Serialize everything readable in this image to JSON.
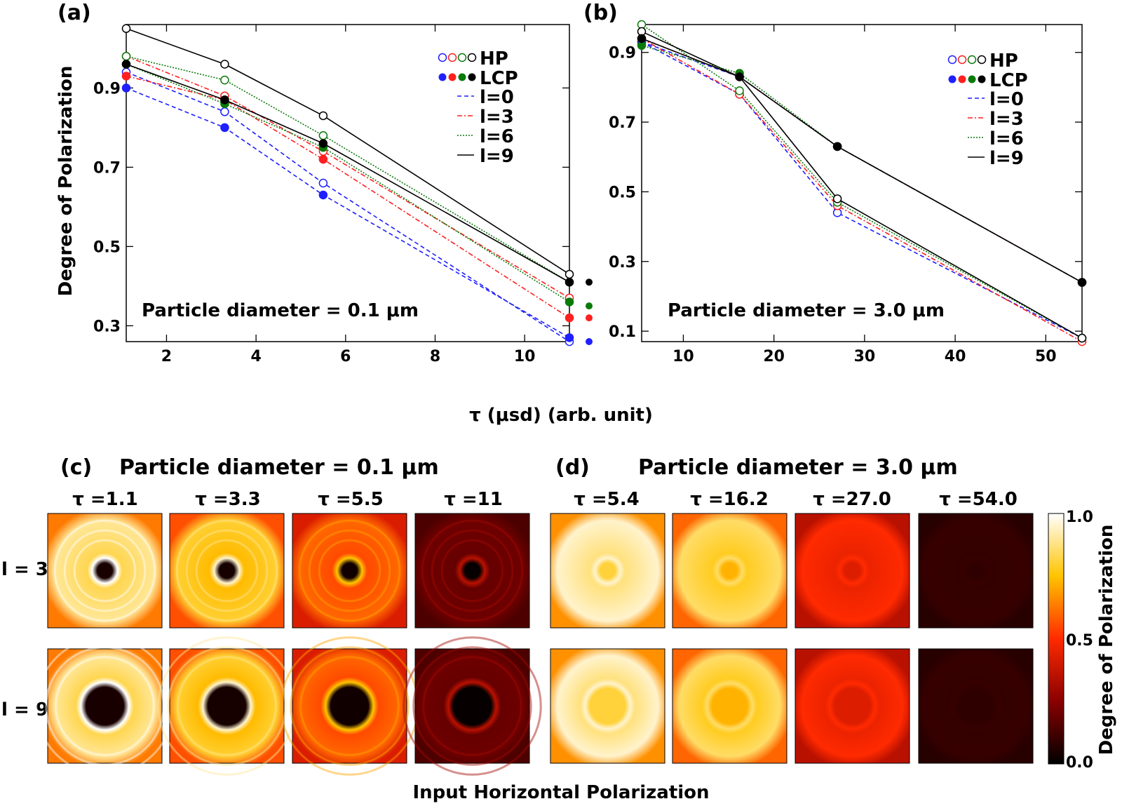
{
  "figure": {
    "shared_xlabel": "τ (μsd) (arb. unit)",
    "shared_ylabel": "Degree of Polarization",
    "bottom_caption": "Input Horizontal Polarization"
  },
  "legend": {
    "hp_label": "HP",
    "lcp_label": "LCP",
    "line_labels": [
      "l=0",
      "l=3",
      "l=6",
      "l=9"
    ]
  },
  "colors": {
    "l0": "#1f1fff",
    "l3": "#ff1f1f",
    "l6": "#0a7a0a",
    "l9": "#000000"
  },
  "chart_data": [
    {
      "panel": "(a)",
      "type": "line",
      "annotation": "Particle diameter = 0.1 μm",
      "x": [
        1.1,
        3.3,
        5.5,
        11
      ],
      "xlim": [
        1.1,
        11
      ],
      "ylim": [
        0.26,
        1.06
      ],
      "xticks": [
        2,
        4,
        6,
        8,
        10
      ],
      "yticks": [
        0.3,
        0.5,
        0.7,
        0.9
      ],
      "legend_position": "top-right",
      "series": [
        {
          "name": "HP",
          "l": "l=0",
          "color": "#1f1fff",
          "values": [
            0.94,
            0.84,
            0.66,
            0.26
          ]
        },
        {
          "name": "HP",
          "l": "l=3",
          "color": "#ff1f1f",
          "values": [
            0.98,
            0.88,
            0.74,
            0.37
          ]
        },
        {
          "name": "HP",
          "l": "l=6",
          "color": "#0a7a0a",
          "values": [
            0.98,
            0.92,
            0.78,
            0.41
          ]
        },
        {
          "name": "HP",
          "l": "l=9",
          "color": "#000000",
          "values": [
            1.05,
            0.96,
            0.83,
            0.43
          ]
        },
        {
          "name": "LCP",
          "l": "l=0",
          "color": "#1f1fff",
          "values": [
            0.9,
            0.8,
            0.63,
            0.27
          ]
        },
        {
          "name": "LCP",
          "l": "l=3",
          "color": "#ff1f1f",
          "values": [
            0.93,
            0.87,
            0.72,
            0.32
          ]
        },
        {
          "name": "LCP",
          "l": "l=6",
          "color": "#0a7a0a",
          "values": [
            0.96,
            0.86,
            0.75,
            0.36
          ]
        },
        {
          "name": "LCP",
          "l": "l=9",
          "color": "#000000",
          "values": [
            0.96,
            0.87,
            0.76,
            0.41
          ]
        }
      ],
      "outside_points": [
        {
          "color": "#000000",
          "value": 0.41
        },
        {
          "color": "#0a7a0a",
          "value": 0.35
        },
        {
          "color": "#ff1f1f",
          "value": 0.32
        },
        {
          "color": "#1f1fff",
          "value": 0.26
        }
      ]
    },
    {
      "panel": "(b)",
      "type": "line",
      "annotation": "Particle diameter = 3.0 μm",
      "x": [
        5.4,
        16.2,
        27.0,
        54.0
      ],
      "xlim": [
        5.4,
        54
      ],
      "ylim": [
        0.07,
        0.98
      ],
      "xticks": [
        10,
        20,
        30,
        40,
        50
      ],
      "yticks": [
        0.1,
        0.3,
        0.5,
        0.7,
        0.9
      ],
      "legend_position": "top-right",
      "series": [
        {
          "name": "HP",
          "l": "l=0",
          "color": "#1f1fff",
          "values": [
            0.93,
            0.78,
            0.44,
            0.08
          ]
        },
        {
          "name": "HP",
          "l": "l=3",
          "color": "#ff1f1f",
          "values": [
            0.94,
            0.78,
            0.46,
            0.07
          ]
        },
        {
          "name": "HP",
          "l": "l=6",
          "color": "#0a7a0a",
          "values": [
            0.98,
            0.79,
            0.47,
            0.08
          ]
        },
        {
          "name": "HP",
          "l": "l=9",
          "color": "#000000",
          "values": [
            0.96,
            0.83,
            0.48,
            0.08
          ]
        },
        {
          "name": "LCP",
          "l": "l=0",
          "color": "#1f1fff",
          "values": [
            0.93,
            0.83,
            0.63,
            0.24
          ]
        },
        {
          "name": "LCP",
          "l": "l=3",
          "color": "#ff1f1f",
          "values": [
            0.94,
            0.83,
            0.63,
            0.24
          ]
        },
        {
          "name": "LCP",
          "l": "l=6",
          "color": "#0a7a0a",
          "values": [
            0.92,
            0.84,
            0.63,
            0.24
          ]
        },
        {
          "name": "LCP",
          "l": "l=9",
          "color": "#000000",
          "values": [
            0.94,
            0.83,
            0.63,
            0.24
          ]
        }
      ],
      "outside_points": []
    }
  ],
  "heatmaps": {
    "panel_c": {
      "label": "(c)",
      "title": "Particle diameter = 0.1 μm",
      "columns": [
        "τ =1.1",
        "τ =3.3",
        "τ =5.5",
        "τ =11"
      ],
      "dop_level": [
        0.9,
        0.8,
        0.6,
        0.2
      ],
      "pattern": "rings"
    },
    "panel_d": {
      "label": "(d)",
      "title": "Particle diameter = 3.0 μm",
      "columns": [
        "τ =5.4",
        "τ =16.2",
        "τ =27.0",
        "τ =54.0"
      ],
      "dop_level": [
        0.95,
        0.85,
        0.5,
        0.1
      ],
      "pattern": "smooth"
    },
    "row_labels": [
      "l = 3",
      "l = 9"
    ],
    "colorbar": {
      "label": "Degree of Polarization",
      "ticks": [
        "1.0",
        "0.5",
        "0.0"
      ]
    }
  }
}
